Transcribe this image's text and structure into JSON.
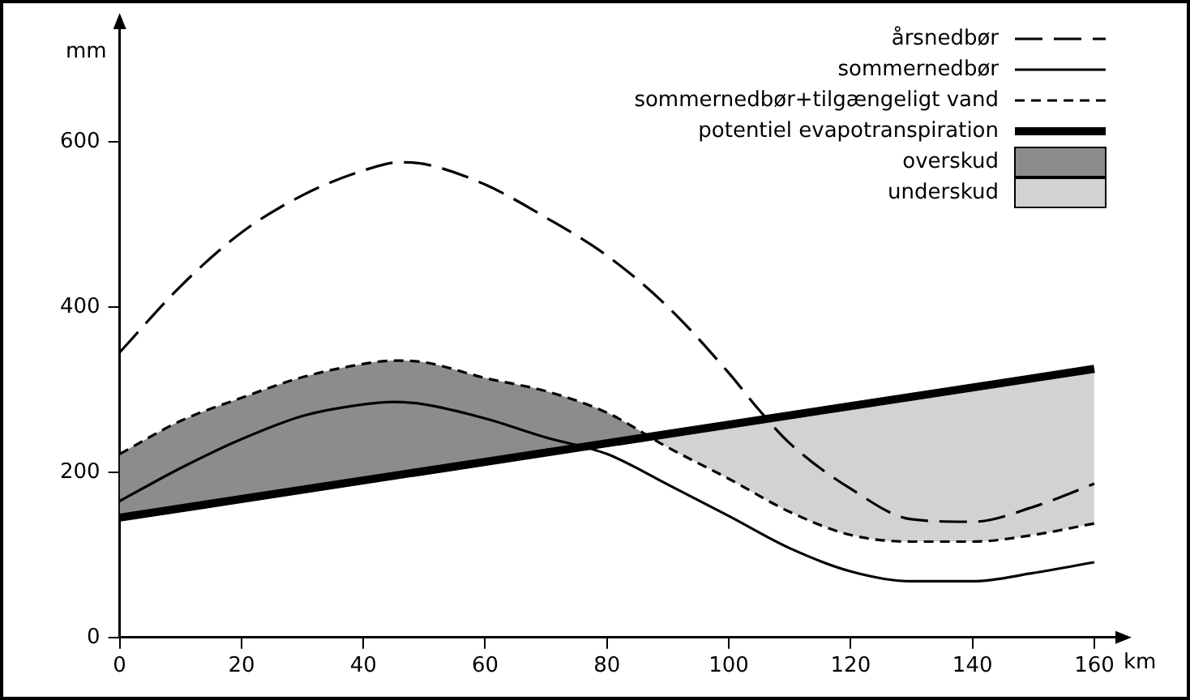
{
  "chart_data": {
    "type": "line",
    "xlabel": "km",
    "ylabel": "mm",
    "xlim": [
      0,
      164
    ],
    "xticks": [
      0,
      20,
      40,
      60,
      80,
      100,
      120,
      140,
      160
    ],
    "ylim": [
      0,
      740
    ],
    "yticks": [
      0,
      200,
      400,
      600
    ],
    "grid": false,
    "legend": "top right",
    "marker": "none",
    "series": [
      {
        "name": "årsnedbør",
        "type": "line",
        "color": "#000000",
        "line_style": "dashed",
        "x": [
          0,
          10,
          20,
          30,
          40,
          46,
          50,
          60,
          70,
          80,
          90,
          100,
          105,
          110,
          120,
          130,
          140,
          150,
          160
        ],
        "values": [
          345,
          425,
          490,
          535,
          565,
          575,
          573,
          548,
          508,
          462,
          400,
          320,
          275,
          235,
          180,
          143,
          140,
          158,
          186
        ]
      },
      {
        "name": "sommernedbør",
        "type": "line",
        "color": "#000000",
        "line_style": "solid",
        "x": [
          0,
          10,
          20,
          30,
          40,
          45,
          50,
          60,
          70,
          80,
          90,
          100,
          110,
          120,
          130,
          140,
          150,
          160
        ],
        "values": [
          165,
          205,
          240,
          268,
          282,
          285,
          282,
          265,
          242,
          222,
          185,
          147,
          108,
          80,
          68,
          68,
          78,
          91
        ]
      },
      {
        "name": "sommernedbør+tilgængeligt vand",
        "type": "line",
        "color": "#000000",
        "line_style": "dashed",
        "x": [
          0,
          10,
          20,
          30,
          40,
          45,
          50,
          60,
          70,
          80,
          90,
          100,
          110,
          120,
          130,
          140,
          150,
          160
        ],
        "values": [
          222,
          262,
          290,
          315,
          331,
          335,
          333,
          314,
          298,
          272,
          230,
          192,
          152,
          124,
          116,
          116,
          124,
          138
        ]
      },
      {
        "name": "potentiel evapotranspiration",
        "type": "line",
        "color": "#000000",
        "line_style": "solid",
        "x": [
          0,
          160
        ],
        "values": [
          145,
          325
        ]
      },
      {
        "name": "overskud",
        "type": "area",
        "color": "#8c8c8c",
        "x": [
          0,
          10,
          20,
          30,
          40,
          45,
          50,
          60,
          70,
          80,
          87
        ],
        "values": [
          222,
          262,
          290,
          315,
          331,
          335,
          333,
          314,
          298,
          272,
          243
        ]
      },
      {
        "name": "underskud",
        "type": "area",
        "color": "#d2d2d2",
        "x": [
          87,
          90,
          100,
          110,
          120,
          130,
          140,
          150,
          160
        ],
        "values": [
          243,
          246,
          258,
          269,
          280,
          291,
          303,
          314,
          325
        ]
      }
    ]
  }
}
